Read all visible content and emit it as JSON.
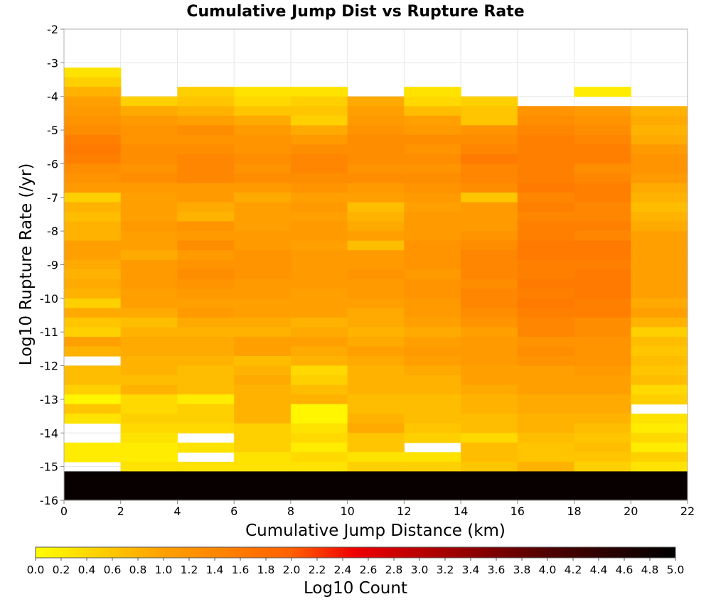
{
  "chart_data": {
    "type": "heatmap",
    "title": "Cumulative Jump Dist vs Rupture Rate",
    "xlabel": "Cumulative Jump Distance (km)",
    "ylabel": "Log10 Rupture Rate (/yr)",
    "xlim": [
      0,
      22
    ],
    "ylim": [
      -16,
      -2
    ],
    "x_ticks": [
      "0",
      "2",
      "4",
      "6",
      "8",
      "10",
      "12",
      "14",
      "16",
      "18",
      "20",
      "22"
    ],
    "y_ticks": [
      "-2",
      "-3",
      "-4",
      "-5",
      "-6",
      "-7",
      "-8",
      "-9",
      "-10",
      "-11",
      "-12",
      "-13",
      "-14",
      "-15",
      "-16"
    ],
    "x_bin_edges_start": 0,
    "x_bin_width": 2,
    "y_bin_width": 0.2857,
    "grid": true,
    "colorbar": {
      "label": "Log10 Count",
      "range": [
        0,
        5
      ],
      "ticks": [
        "0.0",
        "0.2",
        "0.4",
        "0.6",
        "0.8",
        "1.0",
        "1.2",
        "1.4",
        "1.6",
        "1.8",
        "2.0",
        "2.2",
        "2.4",
        "2.6",
        "2.8",
        "3.0",
        "3.2",
        "3.4",
        "3.6",
        "3.8",
        "4.0",
        "4.2",
        "4.4",
        "4.6",
        "4.8",
        "5.0"
      ],
      "colors": [
        "#ffff00",
        "#ffa000",
        "#ff6000",
        "#e00000",
        "#800000",
        "#000000"
      ]
    },
    "bins_note": "rows listed from y=-2.00 downward, each row 2 km columns from x=0 to 22; null = empty bin",
    "bins": [
      [
        null,
        null,
        null,
        null,
        null,
        null,
        null,
        null,
        null,
        null,
        null
      ],
      [
        null,
        null,
        null,
        null,
        null,
        null,
        null,
        null,
        null,
        null,
        null
      ],
      [
        null,
        null,
        null,
        null,
        null,
        null,
        null,
        null,
        null,
        null,
        null
      ],
      [
        null,
        null,
        null,
        null,
        null,
        null,
        null,
        null,
        null,
        null,
        null
      ],
      [
        0.3,
        null,
        null,
        null,
        null,
        null,
        null,
        null,
        null,
        null,
        null
      ],
      [
        0.5,
        null,
        null,
        null,
        null,
        null,
        null,
        null,
        null,
        null,
        null
      ],
      [
        0.8,
        null,
        0.5,
        0.3,
        0.3,
        null,
        0.3,
        null,
        null,
        0.2,
        null
      ],
      [
        1.0,
        0.5,
        0.6,
        0.4,
        0.5,
        0.9,
        0.4,
        0.5,
        null,
        null,
        null
      ],
      [
        1.1,
        0.9,
        0.8,
        0.6,
        0.6,
        1.0,
        0.7,
        0.6,
        1.2,
        1.1,
        0.8
      ],
      [
        1.2,
        1.1,
        1.0,
        0.9,
        0.5,
        1.1,
        1.0,
        0.6,
        1.3,
        1.2,
        0.9
      ],
      [
        1.3,
        1.2,
        1.3,
        1.1,
        0.9,
        1.2,
        1.1,
        1.2,
        1.4,
        1.3,
        0.8
      ],
      [
        1.5,
        1.2,
        1.2,
        1.2,
        1.1,
        1.3,
        1.3,
        1.3,
        1.5,
        1.4,
        0.9
      ],
      [
        1.6,
        1.3,
        1.3,
        1.2,
        1.3,
        1.3,
        1.2,
        1.4,
        1.5,
        1.5,
        1.1
      ],
      [
        1.5,
        1.3,
        1.4,
        1.3,
        1.4,
        1.3,
        1.3,
        1.6,
        1.5,
        1.5,
        1.2
      ],
      [
        1.3,
        1.2,
        1.4,
        1.2,
        1.4,
        1.2,
        1.2,
        1.4,
        1.5,
        1.3,
        1.2
      ],
      [
        1.2,
        1.3,
        1.4,
        1.3,
        1.3,
        1.3,
        1.3,
        1.4,
        1.5,
        1.4,
        1.1
      ],
      [
        1.1,
        1.1,
        1.1,
        1.1,
        1.2,
        1.1,
        1.2,
        1.3,
        1.6,
        1.5,
        0.9
      ],
      [
        0.5,
        1.0,
        1.1,
        0.9,
        1.0,
        1.0,
        1.1,
        0.6,
        1.4,
        1.5,
        0.8
      ],
      [
        0.8,
        1.0,
        0.9,
        1.0,
        1.1,
        0.7,
        1.0,
        1.1,
        1.5,
        1.4,
        0.7
      ],
      [
        0.7,
        1.0,
        0.8,
        1.0,
        1.0,
        0.8,
        1.1,
        1.1,
        1.4,
        1.4,
        0.8
      ],
      [
        0.8,
        1.1,
        1.2,
        1.0,
        1.1,
        0.9,
        1.1,
        1.1,
        1.5,
        1.5,
        0.9
      ],
      [
        0.8,
        1.0,
        1.1,
        1.1,
        1.1,
        1.0,
        1.1,
        1.2,
        1.5,
        1.4,
        1.0
      ],
      [
        1.0,
        1.0,
        1.3,
        1.1,
        1.0,
        0.7,
        1.2,
        1.3,
        1.6,
        1.6,
        1.0
      ],
      [
        1.0,
        0.9,
        1.1,
        1.2,
        1.1,
        1.1,
        1.2,
        1.4,
        1.6,
        1.6,
        1.0
      ],
      [
        0.9,
        1.1,
        1.2,
        1.2,
        1.1,
        1.1,
        1.2,
        1.4,
        1.5,
        1.5,
        1.0
      ],
      [
        0.8,
        1.1,
        1.3,
        1.2,
        1.1,
        1.2,
        1.1,
        1.4,
        1.5,
        1.6,
        1.0
      ],
      [
        0.9,
        1.1,
        1.2,
        1.1,
        1.1,
        1.1,
        1.2,
        1.3,
        1.6,
        1.6,
        1.0
      ],
      [
        0.8,
        1.0,
        1.1,
        1.1,
        1.0,
        1.1,
        1.2,
        1.4,
        1.5,
        1.6,
        1.0
      ],
      [
        0.5,
        1.0,
        1.0,
        1.0,
        1.0,
        1.0,
        1.1,
        1.4,
        1.6,
        1.5,
        0.9
      ],
      [
        0.9,
        0.9,
        1.1,
        1.0,
        1.0,
        0.9,
        1.1,
        1.3,
        1.5,
        1.5,
        1.0
      ],
      [
        0.6,
        0.7,
        0.9,
        0.9,
        0.8,
        0.9,
        1.0,
        1.2,
        1.4,
        1.3,
        0.8
      ],
      [
        0.5,
        0.8,
        0.8,
        0.8,
        0.9,
        0.8,
        0.9,
        1.0,
        1.4,
        1.3,
        0.5
      ],
      [
        1.0,
        0.9,
        0.9,
        1.0,
        1.0,
        0.9,
        1.0,
        1.1,
        1.2,
        1.2,
        0.7
      ],
      [
        0.8,
        0.9,
        0.9,
        1.0,
        0.9,
        1.0,
        1.1,
        1.1,
        1.3,
        1.2,
        0.6
      ],
      [
        null,
        0.8,
        0.8,
        0.7,
        0.8,
        0.9,
        1.0,
        1.1,
        1.2,
        1.2,
        0.7
      ],
      [
        0.7,
        0.8,
        0.7,
        0.8,
        0.4,
        0.8,
        0.9,
        1.0,
        1.0,
        1.1,
        0.6
      ],
      [
        0.7,
        0.7,
        0.7,
        0.9,
        0.5,
        0.8,
        0.8,
        1.0,
        1.0,
        1.0,
        0.7
      ],
      [
        0.5,
        0.8,
        0.7,
        0.8,
        0.7,
        0.8,
        0.8,
        0.9,
        1.0,
        1.0,
        0.4
      ],
      [
        0.1,
        0.4,
        0.2,
        0.8,
        0.8,
        0.7,
        0.7,
        0.8,
        0.9,
        0.9,
        0.5
      ],
      [
        0.6,
        0.4,
        0.5,
        0.8,
        0.1,
        0.7,
        0.7,
        0.8,
        0.9,
        0.9,
        null
      ],
      [
        0.3,
        0.5,
        0.5,
        0.8,
        0.1,
        0.8,
        0.7,
        0.7,
        0.8,
        0.8,
        0.3
      ],
      [
        null,
        0.4,
        0.4,
        0.5,
        0.3,
        0.9,
        0.6,
        0.7,
        0.8,
        0.7,
        0.2
      ],
      [
        null,
        0.3,
        null,
        0.5,
        0.4,
        0.6,
        0.5,
        0.4,
        0.7,
        0.6,
        0.4
      ],
      [
        0.2,
        0.2,
        0.3,
        0.5,
        0.2,
        0.6,
        null,
        0.7,
        0.6,
        0.7,
        0.2
      ],
      [
        0.2,
        0.2,
        null,
        0.3,
        0.4,
        0.3,
        0.3,
        0.7,
        0.6,
        0.6,
        0.5
      ],
      [
        null,
        0.3,
        0.3,
        0.3,
        0.3,
        0.5,
        0.5,
        0.6,
        0.8,
        0.5,
        0.3
      ],
      [
        4.9,
        4.9,
        4.9,
        4.9,
        4.9,
        4.9,
        4.9,
        4.9,
        4.9,
        4.9,
        4.9
      ]
    ]
  }
}
